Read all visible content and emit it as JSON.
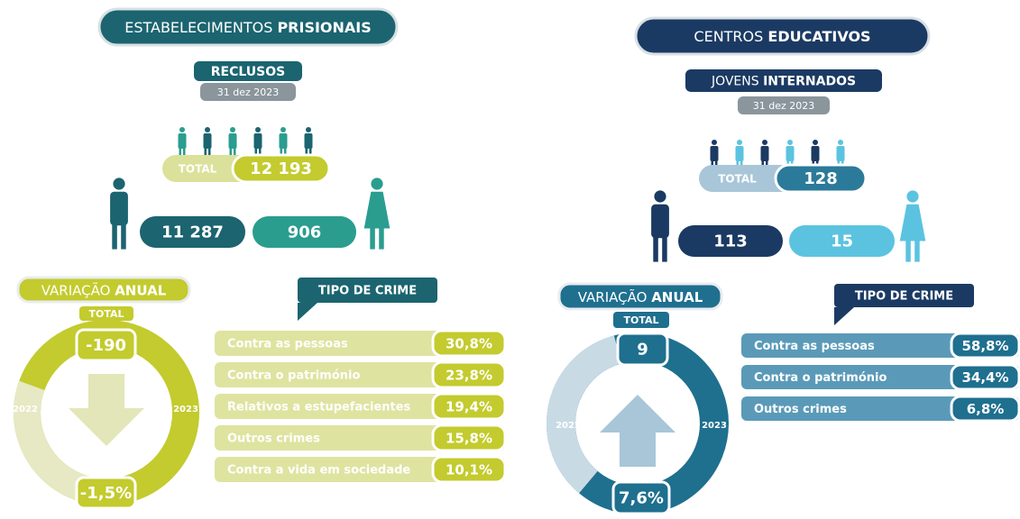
{
  "panels": [
    {
      "title": {
        "regular": "ESTABELECIMENTOS",
        "bold": "PRISIONAIS"
      },
      "subtitle": {
        "bold": "RECLUSOS"
      },
      "date": "31 dez 2023",
      "total_label": "TOTAL",
      "total": "12 193",
      "male": "11 287",
      "female": "906",
      "variation_title": {
        "regular": "VARIAÇÃO",
        "bold": "ANUAL"
      },
      "variation_total_label": "TOTAL",
      "variation_value": "-190",
      "year_start": "2022",
      "year_end": "2023",
      "variation_percent": "-1,5%",
      "crime_title": "TIPO DE CRIME",
      "crimes": [
        {
          "label": "Contra as pessoas",
          "percent": "30,8%"
        },
        {
          "label": "Contra o património",
          "percent": "23,8%"
        },
        {
          "label": "Relativos a estupefacientes",
          "percent": "19,4%"
        },
        {
          "label": "Outros crimes",
          "percent": "15,8%"
        },
        {
          "label": "Contra a vida em sociedade",
          "percent": "10,1%"
        }
      ]
    },
    {
      "title": {
        "regular": "CENTROS",
        "bold": "EDUCATIVOS"
      },
      "subtitle": {
        "regular": "JOVENS",
        "bold": "INTERNADOS"
      },
      "date": "31 dez 2023",
      "total_label": "TOTAL",
      "total": "128",
      "male": "113",
      "female": "15",
      "variation_title": {
        "regular": "VARIAÇÃO",
        "bold": "ANUAL"
      },
      "variation_total_label": "TOTAL",
      "variation_value": "9",
      "year_start": "2022",
      "year_end": "2023",
      "variation_percent": "7,6%",
      "crime_title": "TIPO DE CRIME",
      "crimes": [
        {
          "label": "Contra as pessoas",
          "percent": "58,8%"
        },
        {
          "label": "Contra o património",
          "percent": "34,4%"
        },
        {
          "label": "Outros crimes",
          "percent": "6,8%"
        }
      ]
    }
  ]
}
